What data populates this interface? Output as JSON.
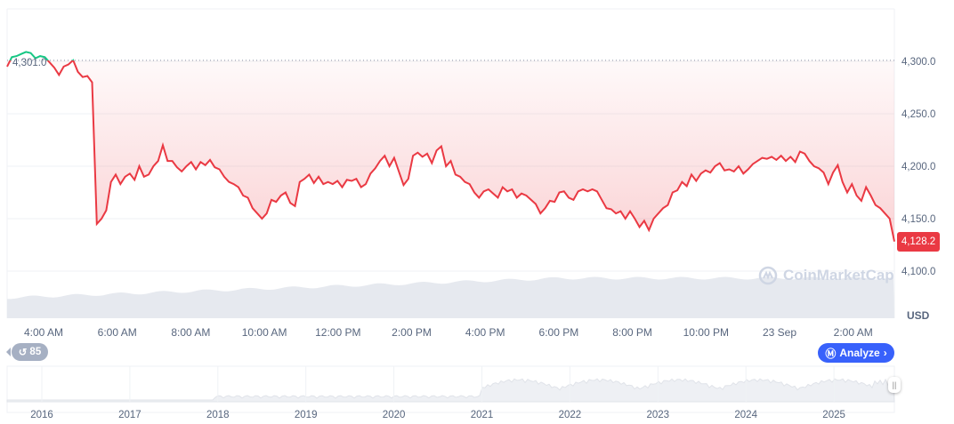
{
  "chart_data": {
    "type": "line",
    "currency": "USD",
    "open_reference": 4301.0,
    "open_reference_label": "4,301.0",
    "last_price": 4128.2,
    "last_price_label": "4,128.2",
    "ylim": [
      4090,
      4320
    ],
    "y_ticks": [
      {
        "v": 4300,
        "label": "4,300.0"
      },
      {
        "v": 4250,
        "label": "4,250.0"
      },
      {
        "v": 4200,
        "label": "4,200.0"
      },
      {
        "v": 4150,
        "label": "4,150.0"
      },
      {
        "v": 4100,
        "label": "4,100.0"
      }
    ],
    "x_ticks": [
      "4:00 AM",
      "6:00 AM",
      "8:00 AM",
      "10:00 AM",
      "12:00 PM",
      "2:00 PM",
      "4:00 PM",
      "6:00 PM",
      "8:00 PM",
      "10:00 PM",
      "23 Sep",
      "2:00 AM"
    ],
    "colors": {
      "up": "#16c784",
      "down": "#ea3943",
      "accent": "#3861fb"
    },
    "values": [
      4295,
      4304,
      4305,
      4307,
      4309,
      4308,
      4303,
      4305,
      4304,
      4299,
      4294,
      4287,
      4295,
      4297,
      4301,
      4290,
      4285,
      4286,
      4280,
      4145,
      4150,
      4158,
      4185,
      4192,
      4183,
      4190,
      4193,
      4187,
      4200,
      4190,
      4192,
      4200,
      4205,
      4220,
      4205,
      4205,
      4199,
      4195,
      4200,
      4204,
      4197,
      4204,
      4201,
      4206,
      4199,
      4197,
      4190,
      4185,
      4183,
      4180,
      4172,
      4170,
      4160,
      4155,
      4150,
      4155,
      4168,
      4166,
      4172,
      4175,
      4165,
      4162,
      4185,
      4188,
      4192,
      4184,
      4190,
      4183,
      4185,
      4183,
      4186,
      4180,
      4187,
      4186,
      4188,
      4180,
      4183,
      4193,
      4198,
      4205,
      4210,
      4200,
      4208,
      4195,
      4182,
      4188,
      4210,
      4213,
      4209,
      4212,
      4203,
      4215,
      4219,
      4200,
      4205,
      4192,
      4190,
      4185,
      4183,
      4175,
      4170,
      4176,
      4178,
      4174,
      4170,
      4180,
      4176,
      4178,
      4170,
      4174,
      4172,
      4168,
      4164,
      4155,
      4160,
      4167,
      4166,
      4175,
      4176,
      4170,
      4168,
      4176,
      4178,
      4176,
      4178,
      4176,
      4168,
      4160,
      4159,
      4155,
      4157,
      4150,
      4157,
      4150,
      4142,
      4148,
      4139,
      4150,
      4155,
      4160,
      4163,
      4175,
      4177,
      4185,
      4181,
      4192,
      4186,
      4193,
      4196,
      4194,
      4200,
      4203,
      4196,
      4197,
      4195,
      4200,
      4193,
      4197,
      4202,
      4205,
      4208,
      4207,
      4209,
      4206,
      4210,
      4205,
      4209,
      4204,
      4214,
      4212,
      4205,
      4200,
      4198,
      4194,
      4183,
      4194,
      4201,
      4185,
      4175,
      4183,
      4172,
      4167,
      4180,
      4172,
      4163,
      4160,
      4155,
      4150,
      4128.2
    ],
    "navigator_years": [
      "2016",
      "2017",
      "2018",
      "2019",
      "2020",
      "2021",
      "2022",
      "2023",
      "2024",
      "2025"
    ]
  },
  "controls": {
    "badge_count": "85",
    "analyze_label": "Analyze",
    "usd_label": "USD",
    "watermark": "CoinMarketCap"
  }
}
